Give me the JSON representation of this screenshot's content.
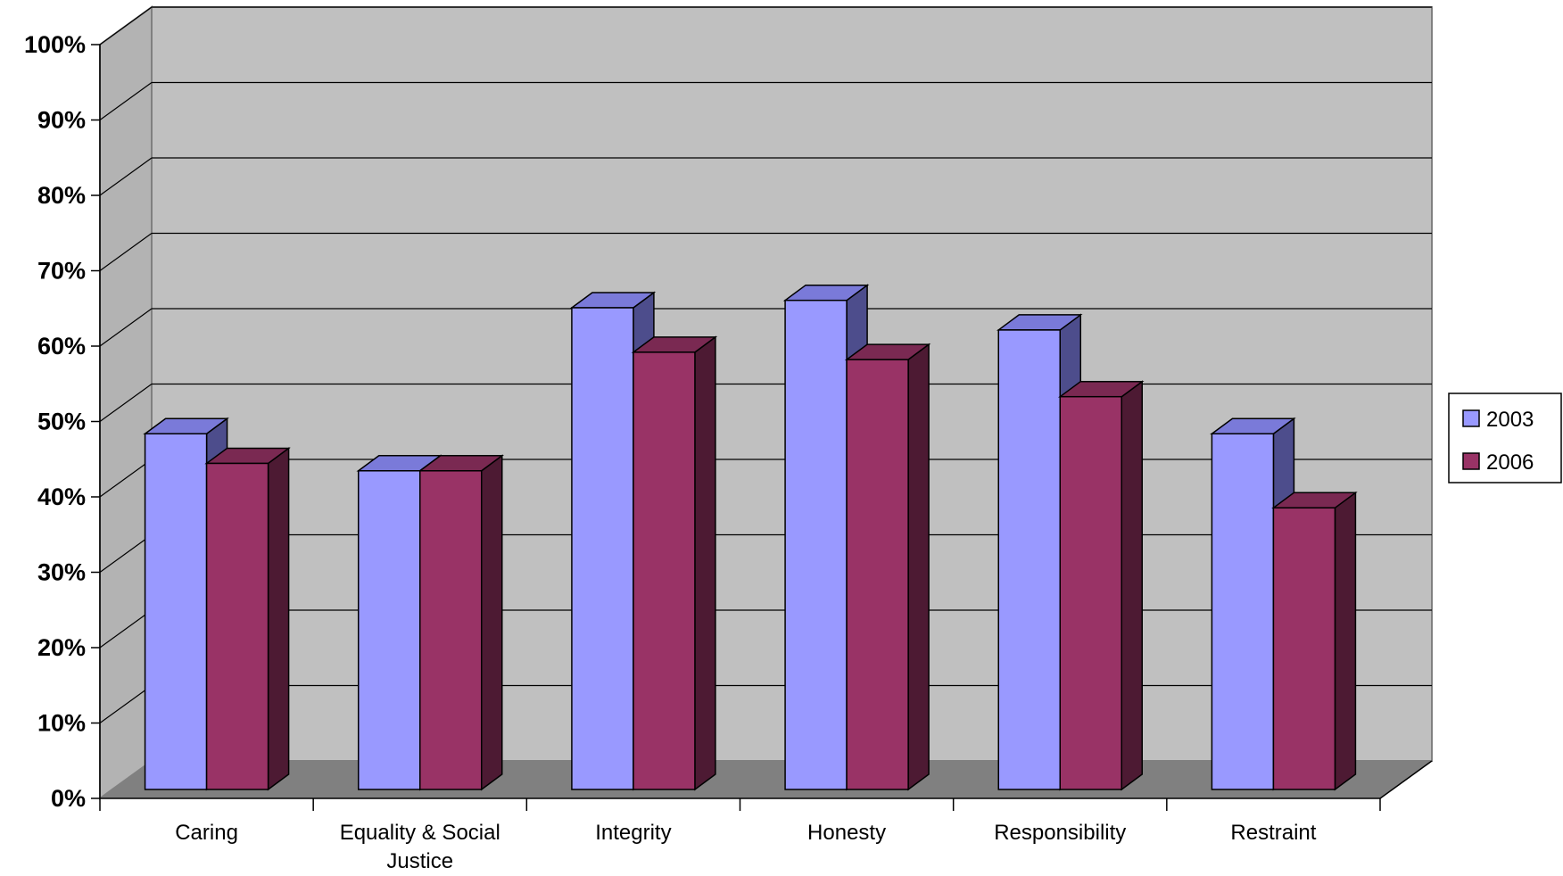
{
  "chart_data": {
    "type": "bar",
    "categories": [
      "Caring",
      "Equality & Social Justice",
      "Integrity",
      "Honesty",
      "Responsibility",
      "Restraint"
    ],
    "series": [
      {
        "name": "2003",
        "values": [
          48,
          43,
          65,
          66,
          62,
          48
        ]
      },
      {
        "name": "2006",
        "values": [
          44,
          43,
          59,
          58,
          53,
          38
        ]
      }
    ],
    "yticks": [
      "0%",
      "10%",
      "20%",
      "30%",
      "40%",
      "50%",
      "60%",
      "70%",
      "80%",
      "90%",
      "100%"
    ],
    "ylim": [
      0,
      100
    ],
    "grid": true,
    "legend": "right",
    "colors": {
      "2003_front": "#9999ff",
      "2003_top": "#7a7ad9",
      "2003_side": "#4d4d8c",
      "2006_front": "#993366",
      "2006_top": "#7a2952",
      "2006_side": "#4d1a33",
      "wall": "#c0c0c0",
      "side_wall": "#b3b3b3",
      "floor": "#808080"
    }
  }
}
